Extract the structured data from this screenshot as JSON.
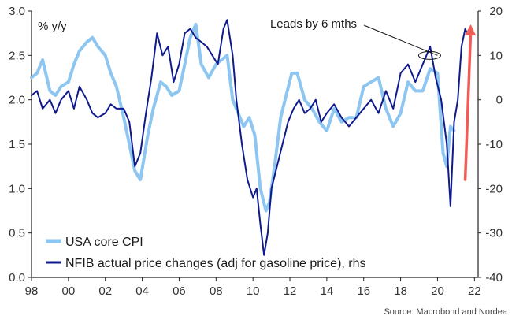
{
  "chart_data": {
    "type": "line",
    "ylabel": "% y/y",
    "source": "Source: Macrobond and Nordea",
    "ylim_left": [
      0.0,
      3.0
    ],
    "ylim_right": [
      -40,
      20
    ],
    "left_ticks": [
      "0.0",
      "0.5",
      "1.0",
      "1.5",
      "2.0",
      "2.5",
      "3.0"
    ],
    "right_ticks": [
      "-40",
      "-30",
      "-20",
      "-10",
      "0",
      "10",
      "20"
    ],
    "x_ticks": [
      "98",
      "00",
      "02",
      "04",
      "06",
      "08",
      "10",
      "12",
      "14",
      "16",
      "18",
      "20",
      "22"
    ],
    "x_range": [
      1998.0,
      2022.2
    ],
    "grid": false,
    "legend_position": "bottom-left",
    "annotations": [
      {
        "text": "Leads by 6 mths",
        "x": 2020.0,
        "y_right": 10
      }
    ],
    "arrow": {
      "from": [
        2021.5,
        -18
      ],
      "to": [
        2021.8,
        17
      ],
      "axis": "right",
      "color": "#f25c54"
    },
    "series": [
      {
        "name": "USA core CPI",
        "axis": "left",
        "color": "#8ec6f2",
        "x": [
          1998.0,
          1998.3,
          1998.6,
          1999.0,
          1999.3,
          1999.6,
          2000.0,
          2000.3,
          2000.6,
          2001.0,
          2001.3,
          2001.6,
          2002.0,
          2002.3,
          2002.6,
          2003.0,
          2003.3,
          2003.6,
          2003.9,
          2004.3,
          2004.6,
          2005.0,
          2005.3,
          2005.6,
          2006.0,
          2006.3,
          2006.6,
          2006.9,
          2007.2,
          2007.6,
          2008.0,
          2008.3,
          2008.6,
          2008.9,
          2009.2,
          2009.5,
          2009.8,
          2010.1,
          2010.4,
          2010.7,
          2010.9,
          2011.2,
          2011.5,
          2011.8,
          2012.1,
          2012.4,
          2012.8,
          2013.2,
          2013.6,
          2014.0,
          2014.4,
          2014.8,
          2015.2,
          2015.6,
          2016.0,
          2016.4,
          2016.8,
          2017.2,
          2017.6,
          2018.0,
          2018.4,
          2018.8,
          2019.2,
          2019.6,
          2020.0,
          2020.3,
          2020.5,
          2020.7,
          2020.9
        ],
        "values": [
          2.25,
          2.3,
          2.45,
          2.1,
          2.05,
          2.15,
          2.2,
          2.4,
          2.55,
          2.65,
          2.7,
          2.6,
          2.5,
          2.3,
          2.15,
          1.8,
          1.5,
          1.2,
          1.1,
          1.6,
          1.9,
          2.2,
          2.15,
          2.05,
          2.1,
          2.4,
          2.7,
          2.85,
          2.4,
          2.25,
          2.4,
          2.45,
          2.5,
          2.0,
          1.85,
          1.7,
          1.8,
          1.6,
          1.0,
          0.75,
          0.85,
          1.3,
          1.8,
          2.05,
          2.3,
          2.3,
          2.0,
          1.9,
          1.75,
          1.65,
          1.9,
          1.75,
          1.8,
          1.8,
          2.15,
          2.2,
          2.25,
          1.9,
          1.7,
          1.85,
          2.2,
          2.1,
          2.1,
          2.35,
          2.3,
          1.4,
          1.25,
          1.7,
          1.65
        ]
      },
      {
        "name": "NFIB actual price changes (adj for gasoline price), rhs",
        "axis": "right",
        "color": "#101a8c",
        "x": [
          1998.0,
          1998.3,
          1998.6,
          1999.0,
          1999.3,
          1999.6,
          2000.0,
          2000.3,
          2000.6,
          2001.0,
          2001.3,
          2001.6,
          2002.0,
          2002.3,
          2002.6,
          2003.0,
          2003.3,
          2003.6,
          2003.9,
          2004.2,
          2004.5,
          2004.8,
          2005.1,
          2005.4,
          2005.7,
          2006.0,
          2006.3,
          2006.6,
          2006.9,
          2007.2,
          2007.5,
          2007.8,
          2008.1,
          2008.4,
          2008.6,
          2008.9,
          2009.1,
          2009.4,
          2009.7,
          2010.0,
          2010.2,
          2010.4,
          2010.6,
          2010.8,
          2011.0,
          2011.3,
          2011.6,
          2011.9,
          2012.2,
          2012.5,
          2012.8,
          2013.1,
          2013.4,
          2013.7,
          2014.0,
          2014.4,
          2014.8,
          2015.2,
          2015.6,
          2016.0,
          2016.4,
          2016.8,
          2017.2,
          2017.6,
          2018.0,
          2018.4,
          2018.8,
          2019.2,
          2019.6,
          2019.9,
          2020.2,
          2020.5,
          2020.7,
          2020.9,
          2021.1,
          2021.3,
          2021.5,
          2021.6
        ],
        "values": [
          1,
          2,
          -2,
          0,
          -3,
          0,
          2,
          -2,
          3,
          0,
          -3,
          -4,
          -3,
          -1,
          -2,
          -2,
          -5,
          -15,
          -12,
          -3,
          5,
          15,
          10,
          12,
          4,
          8,
          15,
          16,
          14,
          13,
          12,
          10,
          8,
          16,
          18,
          10,
          0,
          -10,
          -18,
          -22,
          -20,
          -28,
          -35,
          -30,
          -20,
          -15,
          -10,
          -5,
          -2,
          0,
          -3,
          -2,
          0,
          -5,
          -3,
          -1,
          -4,
          -6,
          -4,
          -2,
          0,
          -3,
          2,
          -2,
          6,
          8,
          4,
          8,
          12,
          5,
          0,
          -10,
          -24,
          -5,
          0,
          12,
          16,
          15
        ]
      }
    ]
  }
}
